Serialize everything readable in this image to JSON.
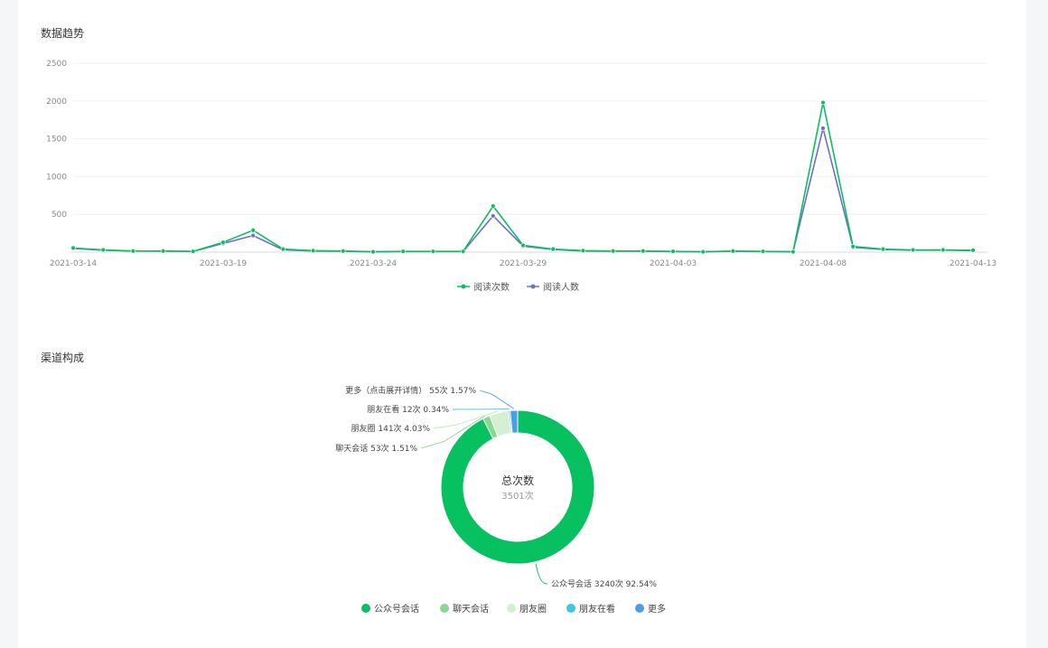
{
  "sections": {
    "trend_title": "数据趋势",
    "channel_title": "渠道构成"
  },
  "chart_data": [
    {
      "type": "line",
      "title": "数据趋势",
      "x": [
        "2021-03-14",
        "2021-03-15",
        "2021-03-16",
        "2021-03-17",
        "2021-03-18",
        "2021-03-19",
        "2021-03-20",
        "2021-03-21",
        "2021-03-22",
        "2021-03-23",
        "2021-03-24",
        "2021-03-25",
        "2021-03-26",
        "2021-03-27",
        "2021-03-28",
        "2021-03-29",
        "2021-03-30",
        "2021-03-31",
        "2021-04-01",
        "2021-04-02",
        "2021-04-03",
        "2021-04-04",
        "2021-04-05",
        "2021-04-06",
        "2021-04-07",
        "2021-04-08",
        "2021-04-09",
        "2021-04-10",
        "2021-04-11",
        "2021-04-12",
        "2021-04-13"
      ],
      "x_tick_labels": [
        "2021-03-14",
        "2021-03-19",
        "2021-03-24",
        "2021-03-29",
        "2021-04-03",
        "2021-04-08",
        "2021-04-13"
      ],
      "y_ticks": [
        500,
        1000,
        1500,
        2000,
        2500
      ],
      "ylim": [
        0,
        2500
      ],
      "grid": true,
      "legend_position": "bottom-center",
      "series": [
        {
          "name": "阅读次数",
          "color": "#07c160",
          "values": [
            55,
            30,
            15,
            15,
            10,
            130,
            290,
            40,
            20,
            15,
            5,
            10,
            10,
            10,
            610,
            90,
            40,
            20,
            15,
            15,
            10,
            5,
            15,
            10,
            5,
            1980,
            75,
            40,
            30,
            30,
            25
          ]
        },
        {
          "name": "阅读人数",
          "color": "#6e70c4",
          "values": [
            50,
            25,
            15,
            12,
            10,
            115,
            220,
            30,
            15,
            12,
            5,
            8,
            8,
            8,
            480,
            80,
            35,
            15,
            12,
            12,
            8,
            5,
            12,
            8,
            5,
            1640,
            65,
            35,
            25,
            28,
            20
          ]
        }
      ]
    },
    {
      "type": "pie",
      "title": "渠道构成",
      "center_title": "总次数",
      "center_value": "3501次",
      "legend_position": "bottom-center",
      "slices": [
        {
          "name": "公众号会话",
          "value": 3240,
          "percent": 92.54,
          "color": "#07c160",
          "label": "公众号会话 3240次 92.54%"
        },
        {
          "name": "聊天会话",
          "value": 53,
          "percent": 1.51,
          "color": "#88d98e",
          "label": "聊天会话 53次 1.51%"
        },
        {
          "name": "朋友圈",
          "value": 141,
          "percent": 4.03,
          "color": "#d3f0d3",
          "label": "朋友圈 141次 4.03%"
        },
        {
          "name": "朋友在看",
          "value": 12,
          "percent": 0.34,
          "color": "#3fc6e0",
          "label": "朋友在看 12次 0.34%"
        },
        {
          "name": "更多",
          "value": 55,
          "percent": 1.57,
          "color": "#4a9ee8",
          "label": "更多（点击展开详情） 55次 1.57%"
        }
      ]
    }
  ]
}
